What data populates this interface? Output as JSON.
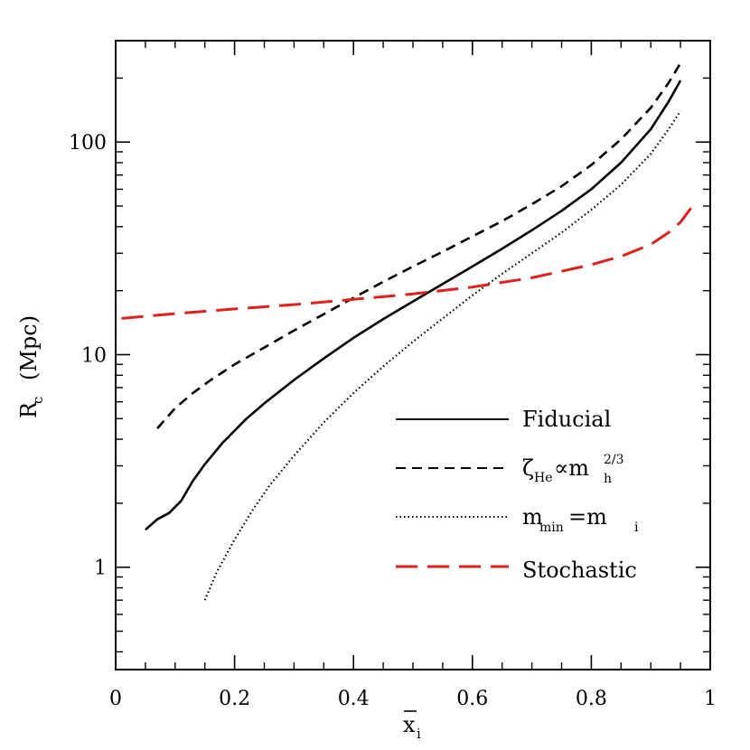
{
  "chart_data": {
    "type": "line",
    "xlabel": "x̄i",
    "ylabel": "Rc (Mpc)",
    "x_scale": "linear",
    "y_scale": "log",
    "xlim": [
      0,
      1
    ],
    "ylim": [
      0.33,
      300
    ],
    "x_ticks": [
      0,
      0.2,
      0.4,
      0.6,
      0.8,
      1
    ],
    "x_tick_labels": [
      "0",
      "0.2",
      "0.4",
      "0.6",
      "0.8",
      "1"
    ],
    "y_ticks": [
      1,
      10,
      100
    ],
    "y_tick_labels": [
      "1",
      "10",
      "100"
    ],
    "grid": false,
    "legend_position": "bottom-right",
    "series": [
      {
        "name": "Fiducial",
        "color": "#000000",
        "style": "solid",
        "x": [
          0.05,
          0.07,
          0.09,
          0.11,
          0.13,
          0.15,
          0.18,
          0.22,
          0.25,
          0.3,
          0.35,
          0.4,
          0.45,
          0.5,
          0.55,
          0.6,
          0.65,
          0.7,
          0.75,
          0.8,
          0.85,
          0.9,
          0.93,
          0.95
        ],
        "y": [
          1.5,
          1.68,
          1.8,
          2.05,
          2.55,
          3.05,
          3.85,
          5.0,
          5.9,
          7.6,
          9.6,
          12.0,
          14.7,
          17.8,
          21.5,
          26.0,
          31.5,
          38.5,
          47.5,
          60.0,
          80.0,
          115.0,
          155.0,
          195.0
        ]
      },
      {
        "name": "ζHe∝mh2/3",
        "color": "#000000",
        "style": "dashed",
        "x": [
          0.07,
          0.1,
          0.13,
          0.16,
          0.2,
          0.25,
          0.3,
          0.35,
          0.4,
          0.45,
          0.5,
          0.55,
          0.6,
          0.65,
          0.7,
          0.75,
          0.8,
          0.85,
          0.9,
          0.93,
          0.95
        ],
        "y": [
          4.5,
          5.6,
          6.6,
          7.6,
          9.0,
          10.8,
          13.0,
          15.5,
          18.5,
          22.0,
          26.0,
          30.5,
          36.0,
          42.5,
          51.0,
          62.0,
          78.0,
          103.0,
          145.0,
          190.0,
          235.0
        ]
      },
      {
        "name": "mmin=mi",
        "color": "#000000",
        "style": "dotted",
        "x": [
          0.15,
          0.17,
          0.2,
          0.23,
          0.26,
          0.3,
          0.35,
          0.4,
          0.45,
          0.5,
          0.55,
          0.6,
          0.65,
          0.7,
          0.75,
          0.8,
          0.85,
          0.9,
          0.93,
          0.95
        ],
        "y": [
          0.7,
          0.95,
          1.35,
          1.85,
          2.45,
          3.35,
          4.8,
          6.6,
          8.8,
          11.5,
          14.8,
          19.0,
          24.0,
          30.0,
          37.5,
          48.0,
          63.0,
          88.0,
          115.0,
          140.0
        ]
      },
      {
        "name": "Stochastic",
        "color": "#e0201b",
        "style": "longdash",
        "x": [
          0.01,
          0.1,
          0.2,
          0.3,
          0.4,
          0.5,
          0.6,
          0.7,
          0.8,
          0.85,
          0.9,
          0.93,
          0.95,
          0.97
        ],
        "y": [
          14.8,
          15.6,
          16.4,
          17.2,
          18.2,
          19.3,
          20.8,
          23.0,
          26.5,
          29.0,
          33.0,
          37.5,
          42.0,
          50.0
        ]
      }
    ]
  },
  "legend": {
    "fiducial": "Fiducial",
    "zeta_symbol": "ζ",
    "zeta_sub": "He",
    "zeta_rel": "∝m",
    "zeta_m_sub": "h",
    "zeta_m_sup": "2/3",
    "mmin_m": "m",
    "mmin_sub": "min",
    "mmin_eq": "=m",
    "mmin_i": "i",
    "stochastic": "Stochastic"
  },
  "axes_text": {
    "ylabel_R": "R",
    "ylabel_sub": "c",
    "ylabel_unit": "(Mpc)",
    "xlabel_x": "x",
    "xlabel_sub": "i"
  }
}
